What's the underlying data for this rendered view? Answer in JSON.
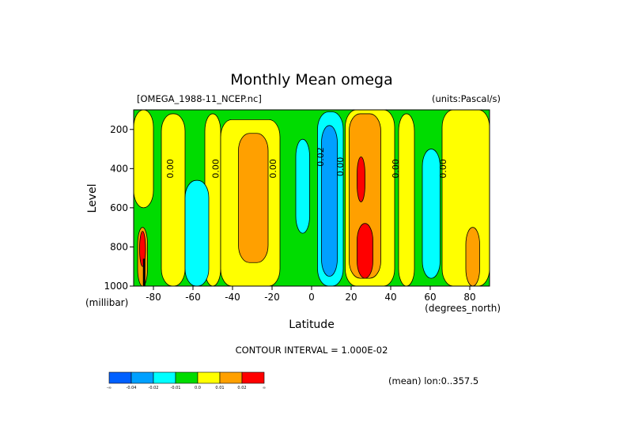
{
  "colors": {
    "blue": "#0060ff",
    "lightblue": "#00a0ff",
    "cyan": "#00ffff",
    "green": "#00dc00",
    "yellow": "#ffff00",
    "orange": "#ffa000",
    "red": "#ff0000",
    "black": "#000000"
  },
  "chart_data": {
    "type": "heatmap",
    "title": "Monthly Mean omega",
    "source_label": "[OMEGA_1988-11_NCEP.nc]",
    "units_label": "(units:Pascal/s)",
    "xlabel": "Latitude",
    "x_units": "(degrees_north)",
    "ylabel": "Level",
    "y_units": "(millibar)",
    "xlim": [
      -90,
      90
    ],
    "ylim": [
      1000,
      100
    ],
    "x_ticks": [
      -80,
      -60,
      -40,
      -20,
      0,
      20,
      40,
      60,
      80
    ],
    "y_ticks": [
      200,
      400,
      600,
      800,
      1000
    ],
    "contour_interval_text": "CONTOUR INTERVAL = 1.000E-02",
    "footer_text": "(mean) lon:0..357.5",
    "colorbar": {
      "labels": [
        "-∞",
        "-0.04",
        "-0.02",
        "-0.01",
        "0.0",
        "0.01",
        "0.02",
        "∞"
      ],
      "levels": [
        -0.04,
        -0.02,
        -0.01,
        0.0,
        0.01,
        0.02
      ],
      "bin_colors": [
        "#0060ff",
        "#00a0ff",
        "#00ffff",
        "#00dc00",
        "#ffff00",
        "#ffa000",
        "#ff0000"
      ]
    },
    "contour_labels": [
      {
        "text": "0.00",
        "lat": -70,
        "lev": 400
      },
      {
        "text": "0.00",
        "lat": -47,
        "lev": 400
      },
      {
        "text": "0.00",
        "lat": -18,
        "lev": 400
      },
      {
        "text": "0.02",
        "lat": 6,
        "lev": 340
      },
      {
        "text": "0.00",
        "lat": 16,
        "lev": 390
      },
      {
        "text": "0.00",
        "lat": 44,
        "lev": 400
      },
      {
        "text": "0.00",
        "lat": 68,
        "lev": 400
      }
    ],
    "regions": [
      {
        "category": "yellow",
        "lat_range": [
          -90,
          -80
        ],
        "lev_range": [
          100,
          600
        ]
      },
      {
        "category": "yellow",
        "lat_range": [
          -76,
          -64
        ],
        "lev_range": [
          120,
          1000
        ]
      },
      {
        "category": "yellow",
        "lat_range": [
          -54,
          -46
        ],
        "lev_range": [
          120,
          1000
        ]
      },
      {
        "category": "cyan",
        "lat_range": [
          -64,
          -52
        ],
        "lev_range": [
          460,
          1000
        ]
      },
      {
        "category": "yellow",
        "lat_range": [
          -46,
          -16
        ],
        "lev_range": [
          150,
          1000
        ]
      },
      {
        "category": "orange",
        "lat_range": [
          -37,
          -22
        ],
        "lev_range": [
          220,
          880
        ]
      },
      {
        "category": "cyan",
        "lat_range": [
          -8,
          -1
        ],
        "lev_range": [
          250,
          730
        ]
      },
      {
        "category": "cyan",
        "lat_range": [
          3,
          16
        ],
        "lev_range": [
          110,
          1000
        ]
      },
      {
        "category": "lightblue",
        "lat_range": [
          5,
          13
        ],
        "lev_range": [
          180,
          950
        ]
      },
      {
        "category": "yellow",
        "lat_range": [
          17,
          42
        ],
        "lev_range": [
          100,
          1000
        ]
      },
      {
        "category": "orange",
        "lat_range": [
          19,
          35
        ],
        "lev_range": [
          120,
          960
        ]
      },
      {
        "category": "red",
        "lat_range": [
          23,
          27
        ],
        "lev_range": [
          340,
          570
        ]
      },
      {
        "category": "red",
        "lat_range": [
          23,
          31
        ],
        "lev_range": [
          680,
          960
        ]
      },
      {
        "category": "yellow",
        "lat_range": [
          44,
          52
        ],
        "lev_range": [
          120,
          1000
        ]
      },
      {
        "category": "cyan",
        "lat_range": [
          56,
          65
        ],
        "lev_range": [
          300,
          960
        ]
      },
      {
        "category": "yellow",
        "lat_range": [
          66,
          90
        ],
        "lev_range": [
          100,
          1000
        ]
      },
      {
        "category": "orange",
        "lat_range": [
          78,
          85
        ],
        "lev_range": [
          700,
          1000
        ]
      },
      {
        "category": "orange",
        "lat_range": [
          -88,
          -83
        ],
        "lev_range": [
          700,
          1000
        ]
      },
      {
        "category": "red",
        "lat_range": [
          -87,
          -84
        ],
        "lev_range": [
          720,
          900
        ]
      }
    ]
  }
}
